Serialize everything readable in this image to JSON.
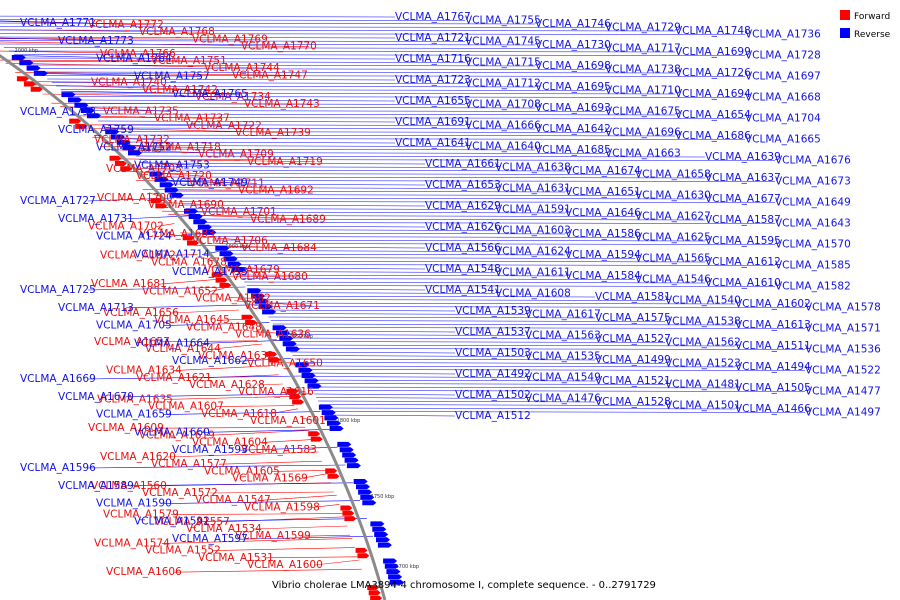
{
  "caption": "Vibrio cholerae LMA3894-4 chromosome I, complete sequence. - 0..2791729",
  "legend": [
    {
      "label": "Forward",
      "color": "#ff0000"
    },
    {
      "label": "Reverse",
      "color": "#0000ff"
    }
  ],
  "ticks": [
    "2000 kbp",
    "1950 kbp",
    "1900 kbp",
    "1850 kbp",
    "1800 kbp",
    "1750 kbp",
    "1700 kbp"
  ],
  "forward_labels": [
    "VCLMA_A1772",
    "VCLMA_A1768",
    "VCLMA_A1769",
    "VCLMA_A1770",
    "VCLMA_A1766",
    "VCLMA_A1751",
    "VCLMA_A1744",
    "VCLMA_A1747",
    "VCLMA_A1740",
    "VCLMA_A1742",
    "VCLMA_A1734",
    "VCLMA_A1743",
    "VCLMA_A1735",
    "VCLMA_A1737",
    "VCLMA_A1722",
    "VCLMA_A1739",
    "VCLMA_A1732",
    "VCLMA_A1718",
    "VCLMA_A1709",
    "VCLMA_A1719",
    "VCLMA_A1703",
    "VCLMA_A1720",
    "VCLMA_A1711",
    "VCLMA_A1692",
    "VCLMA_A1700",
    "VCLMA_A1690",
    "VCLMA_A1701",
    "VCLMA_A1689",
    "VCLMA_A1702",
    "VCLMA_A1683",
    "VCLMA_A1706",
    "VCLMA_A1684",
    "VCLMA_A1672",
    "VCLMA_A1678",
    "VCLMA_A1679",
    "VCLMA_A1680",
    "VCLMA_A1681",
    "VCLMA_A1652",
    "VCLMA_A1682",
    "VCLMA_A1671",
    "VCLMA_A1656",
    "VCLMA_A1645",
    "VCLMA_A1648",
    "VCLMA_A1636",
    "VCLMA_A1657",
    "VCLMA_A1644",
    "VCLMA_A1632",
    "VCLMA_A1650",
    "VCLMA_A1634",
    "VCLMA_A1621",
    "VCLMA_A1628",
    "VCLMA_A1616",
    "VCLMA_A1635",
    "VCLMA_A1607",
    "VCLMA_A1618",
    "VCLMA_A1601",
    "VCLMA_A1609",
    "VCLMA_A1619",
    "VCLMA_A1604",
    "VCLMA_A1583",
    "VCLMA_A1620",
    "VCLMA_A1577",
    "VCLMA_A1605",
    "VCLMA_A1569",
    "VCLMA_A1560",
    "VCLMA_A1572",
    "VCLMA_A1547",
    "VCLMA_A1598",
    "VCLMA_A1579",
    "VCLMA_A1557",
    "VCLMA_A1534",
    "VCLMA_A1599",
    "VCLMA_A1574",
    "VCLMA_A1552",
    "VCLMA_A1531",
    "VCLMA_A1600",
    "VCLMA_A1606"
  ],
  "reverse_labels": [
    "VCLMA_A1771",
    "VCLMA_A1773",
    "VCLMA_A1764",
    "VCLMA_A1757",
    "VCLMA_A1765",
    "VCLMA_A1758",
    "VCLMA_A1759",
    "VCLMA_A1752",
    "VCLMA_A1753",
    "VCLMA_A1749",
    "VCLMA_A1727",
    "VCLMA_A1731",
    "VCLMA_A1724",
    "VCLMA_A1714",
    "VCLMA_A1733",
    "VCLMA_A1725",
    "VCLMA_A1713",
    "VCLMA_A1705",
    "VCLMA_A1664",
    "VCLMA_A1662",
    "VCLMA_A1669",
    "VCLMA_A1670",
    "VCLMA_A1659",
    "VCLMA_A1660",
    "VCLMA_A1593",
    "VCLMA_A1596",
    "VCLMA_A1589",
    "VCLMA_A1590",
    "VCLMA_A1592",
    "VCLMA_A1597",
    "VCLMA_A1767",
    "VCLMA_A1755",
    "VCLMA_A1746",
    "VCLMA_A1729",
    "VCLMA_A1748",
    "VCLMA_A1736",
    "VCLMA_A1721",
    "VCLMA_A1745",
    "VCLMA_A1730",
    "VCLMA_A1717",
    "VCLMA_A1699",
    "VCLMA_A1728",
    "VCLMA_A1716",
    "VCLMA_A1715",
    "VCLMA_A1698",
    "VCLMA_A1738",
    "VCLMA_A1726",
    "VCLMA_A1697",
    "VCLMA_A1723",
    "VCLMA_A1712",
    "VCLMA_A1695",
    "VCLMA_A1710",
    "VCLMA_A1694",
    "VCLMA_A1668",
    "VCLMA_A1655",
    "VCLMA_A1708",
    "VCLMA_A1693",
    "VCLMA_A1675",
    "VCLMA_A1654",
    "VCLMA_A1704",
    "VCLMA_A1691",
    "VCLMA_A1666",
    "VCLMA_A1642",
    "VCLMA_A1696",
    "VCLMA_A1686",
    "VCLMA_A1665",
    "VCLMA_A1641",
    "VCLMA_A1640",
    "VCLMA_A1685",
    "VCLMA_A1663",
    "VCLMA_A1639",
    "VCLMA_A1676",
    "VCLMA_A1661",
    "VCLMA_A1638",
    "VCLMA_A1674",
    "VCLMA_A1658",
    "VCLMA_A1637",
    "VCLMA_A1673",
    "VCLMA_A1653",
    "VCLMA_A1631",
    "VCLMA_A1651",
    "VCLMA_A1630",
    "VCLMA_A1677",
    "VCLMA_A1649",
    "VCLMA_A1629",
    "VCLMA_A1591",
    "VCLMA_A1646",
    "VCLMA_A1627",
    "VCLMA_A1587",
    "VCLMA_A1643",
    "VCLMA_A1626",
    "VCLMA_A1603",
    "VCLMA_A1586",
    "VCLMA_A1625",
    "VCLMA_A1595",
    "VCLMA_A1570",
    "VCLMA_A1566",
    "VCLMA_A1624",
    "VCLMA_A1594",
    "VCLMA_A1565",
    "VCLMA_A1612",
    "VCLMA_A1585",
    "VCLMA_A1548",
    "VCLMA_A1611",
    "VCLMA_A1584",
    "VCLMA_A1546",
    "VCLMA_A1610",
    "VCLMA_A1582",
    "VCLMA_A1541",
    "VCLMA_A1608",
    "VCLMA_A1581",
    "VCLMA_A1540",
    "VCLMA_A1602",
    "VCLMA_A1578",
    "VCLMA_A1539",
    "VCLMA_A1617",
    "VCLMA_A1575",
    "VCLMA_A1538",
    "VCLMA_A1613",
    "VCLMA_A1571",
    "VCLMA_A1537",
    "VCLMA_A1563",
    "VCLMA_A1527",
    "VCLMA_A1562",
    "VCLMA_A1511",
    "VCLMA_A1536",
    "VCLMA_A1503",
    "VCLMA_A1535",
    "VCLMA_A1499",
    "VCLMA_A1523",
    "VCLMA_A1494",
    "VCLMA_A1522",
    "VCLMA_A1492",
    "VCLMA_A1549",
    "VCLMA_A1521",
    "VCLMA_A1481",
    "VCLMA_A1505",
    "VCLMA_A1477",
    "VCLMA_A1502",
    "VCLMA_A1476",
    "VCLMA_A1528",
    "VCLMA_A1501",
    "VCLMA_A1466",
    "VCLMA_A1497",
    "VCLMA_A1512"
  ]
}
